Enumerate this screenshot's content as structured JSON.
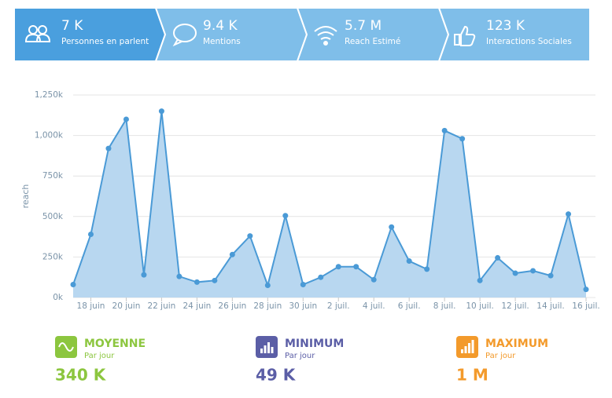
{
  "kpis": [
    {
      "value": "7 K",
      "label": "Personnes en parlent"
    },
    {
      "value": "9.4 K",
      "label": "Mentions"
    },
    {
      "value": "5.7 M",
      "label": "Reach Estimé"
    },
    {
      "value": "123 K",
      "label": "Interactions Sociales"
    }
  ],
  "chart_data": {
    "type": "area",
    "y_label": "reach",
    "categories": [
      null,
      "18 juin",
      null,
      "20 juin",
      null,
      "22 juin",
      null,
      "24 juin",
      null,
      "26 juin",
      null,
      "28 juin",
      null,
      "30 juin",
      null,
      "2 juil.",
      null,
      "4 juil.",
      null,
      "6 juil.",
      null,
      "8 juil.",
      null,
      "10 juil.",
      null,
      "12 juil.",
      null,
      "14 juil.",
      null,
      "16 juil."
    ],
    "values": [
      80000,
      390000,
      920000,
      1100000,
      140000,
      1150000,
      130000,
      95000,
      105000,
      265000,
      380000,
      75000,
      505000,
      80000,
      125000,
      190000,
      190000,
      110000,
      435000,
      225000,
      175000,
      1030000,
      980000,
      105000,
      245000,
      150000,
      165000,
      135000,
      515000,
      50000
    ],
    "color": "#4a9ad6",
    "fill": "#b8d7f0",
    "ylim": [
      0,
      1250000
    ],
    "yticks": [
      {
        "value": 0,
        "label": "0k"
      },
      {
        "value": 250000,
        "label": "250k"
      },
      {
        "value": 500000,
        "label": "500k"
      },
      {
        "value": 750000,
        "label": "750k"
      },
      {
        "value": 1000000,
        "label": "1,000k"
      },
      {
        "value": 1250000,
        "label": "1,250k"
      }
    ],
    "grid": true
  },
  "stats": [
    {
      "title": "MOYENNE",
      "sub": "Par jour",
      "value": "340 K",
      "color": "#8cc63f"
    },
    {
      "title": "MINIMUM",
      "sub": "Par jour",
      "value": "49 K",
      "color": "#5b5ea6"
    },
    {
      "title": "MAXIMUM",
      "sub": "Par jour",
      "value": "1 M",
      "color": "#f39a2b"
    }
  ]
}
